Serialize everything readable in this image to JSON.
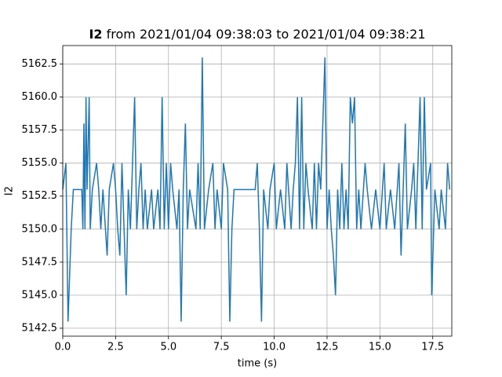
{
  "chart_data": {
    "type": "line",
    "title_signal": "I2",
    "title": "from 2021/01/04 09:38:03 to 2021/01/04 09:38:21",
    "xlabel": "time (s)",
    "ylabel": "I2",
    "xlim": [
      0,
      18.4
    ],
    "ylim": [
      5141.9,
      5163.9
    ],
    "xticks": [
      {
        "value": 0,
        "label": "0.0"
      },
      2.5,
      {
        "value": 5,
        "label": "5.0"
      },
      7.5,
      {
        "value": 10,
        "label": "10.0"
      },
      12.5,
      {
        "value": 15,
        "label": "15.0"
      },
      17.5
    ],
    "yticks": [
      5142.5,
      {
        "value": 5145,
        "label": "5145.0"
      },
      5147.5,
      {
        "value": 5150,
        "label": "5150.0"
      },
      5152.5,
      {
        "value": 5155,
        "label": "5155.0"
      },
      5157.5,
      {
        "value": 5160,
        "label": "5160.0"
      },
      5162.5
    ],
    "grid": true,
    "x": [
      0,
      0.15,
      0.25,
      0.4,
      0.5,
      0.9,
      0.95,
      1.0,
      1.05,
      1.1,
      1.15,
      1.25,
      1.3,
      1.4,
      1.6,
      1.7,
      1.8,
      1.9,
      2.1,
      2.2,
      2.4,
      2.5,
      2.6,
      2.7,
      2.8,
      2.9,
      3.0,
      3.1,
      3.2,
      3.4,
      3.5,
      3.6,
      3.7,
      3.8,
      3.9,
      4.0,
      4.2,
      4.3,
      4.5,
      4.6,
      4.7,
      4.8,
      4.9,
      5.0,
      5.1,
      5.2,
      5.4,
      5.5,
      5.6,
      5.7,
      5.8,
      5.9,
      6.0,
      6.3,
      6.4,
      6.5,
      6.6,
      6.7,
      6.9,
      7.1,
      7.2,
      7.3,
      7.5,
      7.6,
      7.8,
      7.9,
      8.0,
      8.1,
      9.1,
      9.2,
      9.3,
      9.4,
      9.5,
      9.7,
      9.8,
      10.0,
      10.1,
      10.3,
      10.5,
      10.6,
      10.8,
      10.9,
      11.0,
      11.1,
      11.2,
      11.3,
      11.4,
      11.5,
      11.6,
      11.8,
      11.9,
      12.0,
      12.1,
      12.2,
      12.4,
      12.5,
      12.6,
      12.7,
      12.8,
      12.9,
      13.0,
      13.1,
      13.2,
      13.3,
      13.4,
      13.5,
      13.6,
      13.7,
      13.8,
      13.9,
      14.0,
      14.1,
      14.3,
      14.4,
      14.6,
      14.8,
      15.0,
      15.2,
      15.3,
      15.5,
      15.7,
      15.9,
      16.0,
      16.1,
      16.2,
      16.3,
      16.5,
      16.6,
      16.7,
      16.9,
      17.0,
      17.1,
      17.2,
      17.4,
      17.45,
      17.6,
      17.8,
      17.9,
      18.1,
      18.2,
      18.3
    ],
    "series": [
      {
        "name": "I2",
        "color": "#1f77b4",
        "values": [
          5153,
          5155,
          5143,
          5150,
          5153,
          5153,
          5150,
          5158,
          5150,
          5160,
          5153,
          5160,
          5150,
          5153,
          5155,
          5153,
          5150,
          5153,
          5148,
          5153,
          5155,
          5153,
          5150,
          5148,
          5155,
          5150,
          5145,
          5153,
          5150,
          5160,
          5150,
          5153,
          5155,
          5150,
          5153,
          5150,
          5153,
          5150,
          5153,
          5150,
          5160,
          5150,
          5155,
          5150,
          5155,
          5153,
          5150,
          5153,
          5143,
          5153,
          5158,
          5150,
          5153,
          5150,
          5155,
          5150,
          5163,
          5150,
          5153,
          5155,
          5150,
          5153,
          5150,
          5155,
          5153,
          5143,
          5150,
          5153,
          5153,
          5155,
          5150,
          5143,
          5153,
          5150,
          5153,
          5155,
          5150,
          5153,
          5150,
          5155,
          5150,
          5153,
          5155,
          5160,
          5150,
          5160,
          5150,
          5155,
          5153,
          5150,
          5155,
          5150,
          5155,
          5153,
          5163,
          5150,
          5153,
          5150,
          5148,
          5145,
          5153,
          5150,
          5155,
          5150,
          5153,
          5150,
          5160,
          5158,
          5160,
          5150,
          5153,
          5150,
          5155,
          5153,
          5150,
          5153,
          5150,
          5155,
          5150,
          5153,
          5150,
          5155,
          5148,
          5153,
          5158,
          5150,
          5153,
          5155,
          5150,
          5160,
          5150,
          5160,
          5153,
          5155,
          5145,
          5153,
          5150,
          5153,
          5150,
          5155,
          5153
        ]
      }
    ]
  }
}
